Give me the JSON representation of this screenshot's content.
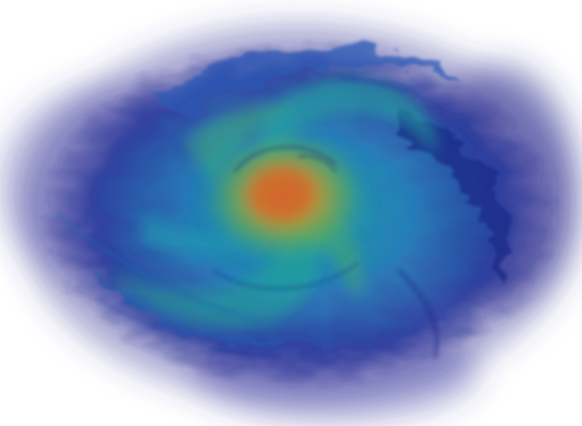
{
  "image": {
    "subject": "swirling-volume-render",
    "background_color": "#ffffff",
    "palette": {
      "outer": "#2a2a8c",
      "mid_blue": "#1f5fb0",
      "teal": "#1a9aa8",
      "green": "#3aa86a",
      "yellow": "#c8a028",
      "core": "#d06a2a"
    }
  }
}
